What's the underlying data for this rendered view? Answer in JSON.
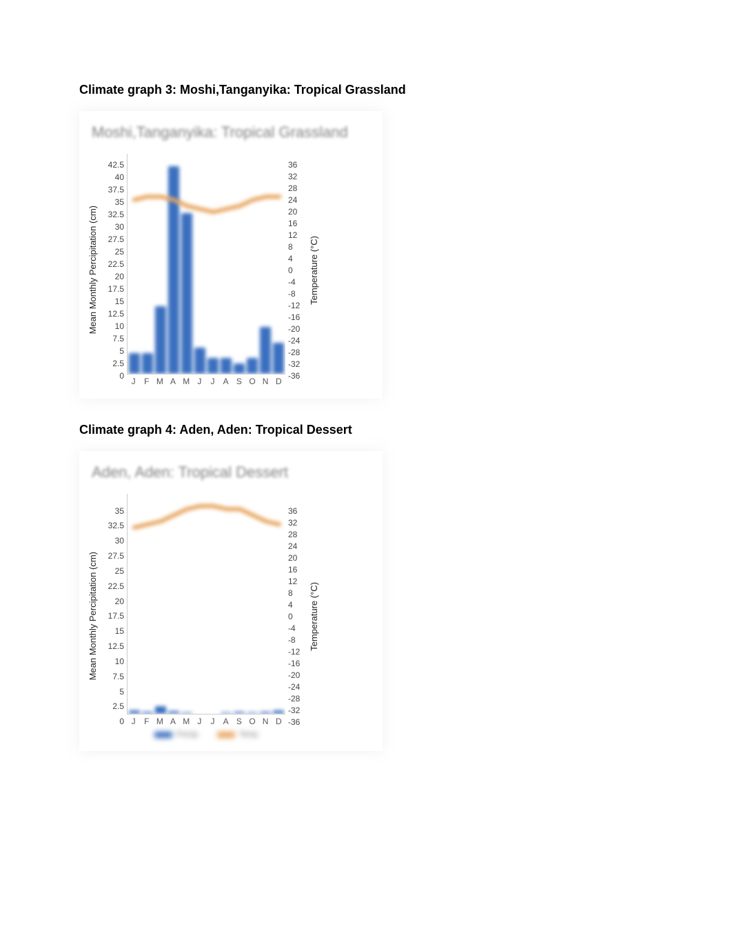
{
  "page_background": "#ffffff",
  "caption3": "Climate graph 3: Moshi,Tanganyika: Tropical Grassland",
  "caption4": "Climate graph 4: Aden, Aden: Tropical Dessert",
  "chart3": {
    "title": "Moshi,Tanganyika: Tropical Grassland",
    "type": "combo-bar-line",
    "months": [
      "J",
      "F",
      "M",
      "A",
      "M",
      "J",
      "J",
      "A",
      "S",
      "O",
      "N",
      "D"
    ],
    "y_left_label": "Mean Monthly Percipitation (cm)",
    "y_right_label": "Temperature (°C)",
    "y_left": {
      "min": 0,
      "max": 42.5,
      "step": 2.5,
      "ticks": [
        "42.5",
        "40",
        "37.5",
        "35",
        "32.5",
        "30",
        "27.5",
        "25",
        "22.5",
        "20",
        "17.5",
        "15",
        "12.5",
        "10",
        "7.5",
        "5",
        "2.5",
        "0"
      ]
    },
    "y_right": {
      "min": -36,
      "max": 36,
      "step": 4,
      "ticks": [
        "36",
        "32",
        "28",
        "24",
        "20",
        "16",
        "12",
        "8",
        "4",
        "0",
        "-4",
        "-8",
        "-12",
        "-16",
        "-20",
        "-24",
        "-28",
        "-32",
        "-36"
      ]
    },
    "precip_values": [
      4,
      4,
      13,
      40,
      31,
      5,
      3,
      3,
      2,
      3,
      9,
      6
    ],
    "temp_values": [
      21,
      22,
      22,
      21,
      19,
      18,
      17,
      18,
      19,
      21,
      22,
      22
    ],
    "bar_color": "#3a6fbf",
    "line_color": "#e8a661",
    "line_width": 6,
    "bar_width": 0.75,
    "background_color": "#ffffff",
    "title_fontsize": 22,
    "tick_fontsize": 12,
    "label_fontsize": 13
  },
  "chart4": {
    "title": "Aden, Aden: Tropical Dessert",
    "type": "combo-bar-line",
    "months": [
      "J",
      "F",
      "M",
      "A",
      "M",
      "J",
      "J",
      "A",
      "S",
      "O",
      "N",
      "D"
    ],
    "y_left_label": "Mean Monthly Percipitation (cm)",
    "y_right_label": "Temperature (°C)",
    "y_left": {
      "min": 0,
      "max": 35,
      "step": 2.5,
      "ticks": [
        "35",
        "32.5",
        "30",
        "27.5",
        "25",
        "22.5",
        "20",
        "17.5",
        "15",
        "12.5",
        "10",
        "7.5",
        "5",
        "2.5",
        "0"
      ]
    },
    "y_right": {
      "min": -36,
      "max": 36,
      "step": 4,
      "ticks": [
        "36",
        "32",
        "28",
        "24",
        "20",
        "16",
        "12",
        "8",
        "4",
        "0",
        "-4",
        "-8",
        "-12",
        "-16",
        "-20",
        "-24",
        "-28",
        "-32",
        "-36"
      ]
    },
    "precip_values": [
      0.5,
      0.3,
      1.2,
      0.4,
      0.2,
      0,
      0,
      0.2,
      0.3,
      0.2,
      0.3,
      0.5
    ],
    "temp_values": [
      25,
      26,
      27,
      29,
      31,
      32,
      32,
      31,
      31,
      29,
      27,
      26
    ],
    "bar_color": "#3a6fbf",
    "line_color": "#e8a661",
    "line_width": 6,
    "bar_width": 0.75,
    "background_color": "#ffffff",
    "title_fontsize": 22,
    "tick_fontsize": 12,
    "label_fontsize": 13,
    "legend": {
      "precip_label": "Precip",
      "temp_label": "Temp"
    }
  }
}
